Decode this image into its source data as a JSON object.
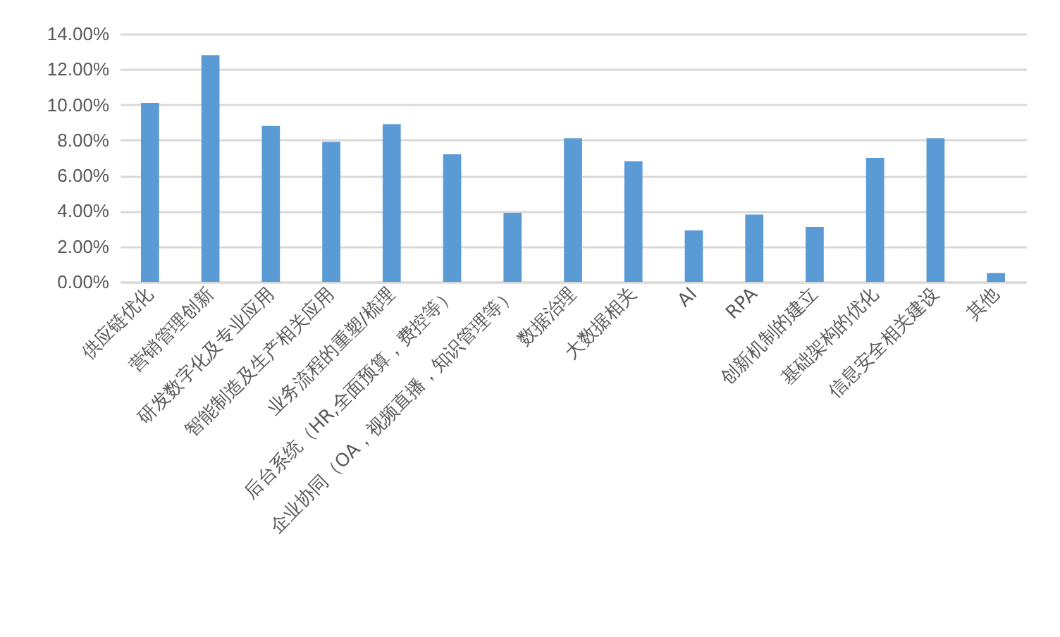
{
  "chart_data": {
    "type": "bar",
    "categories": [
      "供应链优化",
      "营销管理创新",
      "研发数字化及专业应用",
      "智能制造及生产相关应用",
      "业务流程的重塑/梳理",
      "后台系统（HR,全面预算，费控等）",
      "企业协同（OA，视频直播，知识管理等）",
      "数据治理",
      "大数据相关",
      "AI",
      "RPA",
      "创新机制的建立",
      "基础架构的优化",
      "信息安全相关建设",
      "其他"
    ],
    "values": [
      10.1,
      12.8,
      8.8,
      7.9,
      8.9,
      7.2,
      3.9,
      8.1,
      6.8,
      2.9,
      3.8,
      3.1,
      7.0,
      8.1,
      0.5
    ],
    "color": "#5b9bd5",
    "ylim": [
      0,
      14
    ],
    "yticks": [
      {
        "value": 0,
        "label": "0.00%"
      },
      {
        "value": 2,
        "label": "2.00%"
      },
      {
        "value": 4,
        "label": "4.00%"
      },
      {
        "value": 6,
        "label": "6.00%"
      },
      {
        "value": 8,
        "label": "8.00%"
      },
      {
        "value": 10,
        "label": "10.00%"
      },
      {
        "value": 12,
        "label": "12.00%"
      },
      {
        "value": 14,
        "label": "14.00%"
      }
    ],
    "grid": "y"
  }
}
